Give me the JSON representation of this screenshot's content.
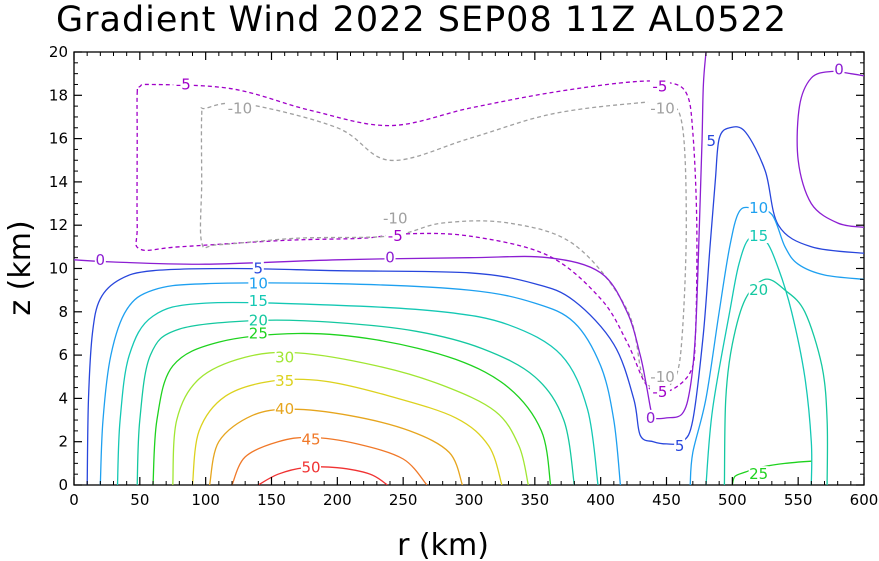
{
  "chart_data": {
    "type": "contour",
    "title": "Gradient Wind 2022 SEP08 11Z  AL0522",
    "xlabel": "r (km)",
    "ylabel": "z (km)",
    "xlim": [
      0,
      600
    ],
    "ylim": [
      0,
      20
    ],
    "xticks": [
      "0",
      "50",
      "100",
      "150",
      "200",
      "250",
      "300",
      "350",
      "400",
      "450",
      "500",
      "550",
      "600"
    ],
    "yticks": [
      "0",
      "2",
      "4",
      "6",
      "8",
      "10",
      "12",
      "14",
      "16",
      "18",
      "20"
    ],
    "grid": false,
    "legend": "none",
    "contour_levels": [
      -10,
      -5,
      0,
      5,
      10,
      15,
      20,
      25,
      30,
      35,
      40,
      45,
      50
    ],
    "negative_contours": "dashed",
    "colors": {
      "-10": "#a0a0a0",
      "-5": "#a000c8",
      "0": "#8c1ed2",
      "5": "#2846dc",
      "10": "#1ea0f0",
      "15": "#14c8b4",
      "20": "#14c8a0",
      "25": "#1ed21e",
      "30": "#a0e632",
      "35": "#dcd21e",
      "40": "#e6a51e",
      "45": "#f07828",
      "50": "#f03232"
    },
    "contours": [
      {
        "level": -5,
        "label": "-5",
        "closed": true,
        "points": [
          [
            48,
            18.1
          ],
          [
            50,
            18.4
          ],
          [
            60,
            18.5
          ],
          [
            120,
            18.3
          ],
          [
            180,
            17.3
          ],
          [
            240,
            16.6
          ],
          [
            300,
            17.4
          ],
          [
            360,
            18.1
          ],
          [
            420,
            18.6
          ],
          [
            450,
            18.6
          ],
          [
            465,
            18.1
          ],
          [
            470,
            16.3
          ],
          [
            473,
            12
          ],
          [
            472,
            7
          ],
          [
            468,
            5.2
          ],
          [
            450,
            4.3
          ],
          [
            435,
            4.6
          ],
          [
            420,
            6.6
          ],
          [
            400,
            8.6
          ],
          [
            360,
            10.6
          ],
          [
            300,
            11.5
          ],
          [
            250,
            11.6
          ],
          [
            220,
            11.4
          ],
          [
            160,
            11.3
          ],
          [
            80,
            11.0
          ],
          [
            50,
            10.9
          ],
          [
            48,
            12
          ],
          [
            48,
            16
          ]
        ]
      },
      {
        "level": -10,
        "label": "-10",
        "closed": true,
        "points": [
          [
            97,
            17.1
          ],
          [
            100,
            17.4
          ],
          [
            130,
            17.6
          ],
          [
            200,
            16.5
          ],
          [
            240,
            15.0
          ],
          [
            300,
            16.0
          ],
          [
            360,
            17.1
          ],
          [
            420,
            17.6
          ],
          [
            450,
            17.6
          ],
          [
            462,
            16.6
          ],
          [
            465,
            12
          ],
          [
            462,
            7
          ],
          [
            457,
            5.0
          ],
          [
            445,
            4.5
          ],
          [
            432,
            5.0
          ],
          [
            420,
            8.1
          ],
          [
            380,
            11.1
          ],
          [
            330,
            12.1
          ],
          [
            280,
            12.1
          ],
          [
            240,
            11.5
          ],
          [
            170,
            11.4
          ],
          [
            110,
            11.1
          ],
          [
            97,
            11.2
          ],
          [
            97,
            14
          ]
        ]
      },
      {
        "level": 0,
        "label": "0",
        "closed": false,
        "points": [
          [
            0,
            10.4
          ],
          [
            30,
            10.3
          ],
          [
            100,
            10.2
          ],
          [
            200,
            10.4
          ],
          [
            300,
            10.5
          ],
          [
            360,
            10.5
          ],
          [
            400,
            9.8
          ],
          [
            420,
            8.0
          ],
          [
            430,
            6.0
          ],
          [
            435,
            4.5
          ],
          [
            438,
            3.5
          ],
          [
            440,
            3.1
          ],
          [
            450,
            3.1
          ],
          [
            462,
            3.3
          ],
          [
            468,
            4.5
          ],
          [
            472,
            7
          ],
          [
            475,
            12
          ],
          [
            477,
            16
          ],
          [
            478,
            18.5
          ],
          [
            480,
            20
          ]
        ]
      },
      {
        "level": 0,
        "label": "0",
        "closed": false,
        "points": [
          [
            600,
            11.9
          ],
          [
            580,
            12.1
          ],
          [
            560,
            13.0
          ],
          [
            550,
            15
          ],
          [
            551,
            17.5
          ],
          [
            560,
            18.8
          ],
          [
            575,
            19.1
          ],
          [
            590,
            19.0
          ],
          [
            600,
            18.9
          ]
        ]
      },
      {
        "level": 5,
        "label": "5",
        "closed": false,
        "points": [
          [
            10,
            0
          ],
          [
            11,
            4
          ],
          [
            14,
            7
          ],
          [
            20,
            8.6
          ],
          [
            35,
            9.5
          ],
          [
            60,
            9.9
          ],
          [
            120,
            10.0
          ],
          [
            200,
            9.9
          ],
          [
            300,
            9.8
          ],
          [
            350,
            9.3
          ],
          [
            380,
            8.5
          ],
          [
            410,
            6.5
          ],
          [
            425,
            4.0
          ],
          [
            430,
            2.3
          ],
          [
            440,
            2.0
          ],
          [
            450,
            1.9
          ],
          [
            462,
            2.0
          ],
          [
            470,
            3.0
          ],
          [
            478,
            7
          ],
          [
            483,
            11
          ],
          [
            487,
            14
          ],
          [
            490,
            16
          ],
          [
            498,
            16.5
          ],
          [
            510,
            16.3
          ],
          [
            525,
            14.5
          ],
          [
            535,
            12.0
          ],
          [
            560,
            11.0
          ],
          [
            600,
            10.7
          ]
        ]
      },
      {
        "level": 10,
        "label": "10",
        "closed": false,
        "points": [
          [
            20,
            0
          ],
          [
            22,
            3
          ],
          [
            28,
            6
          ],
          [
            40,
            8.1
          ],
          [
            60,
            9.0
          ],
          [
            100,
            9.3
          ],
          [
            200,
            9.3
          ],
          [
            300,
            9.0
          ],
          [
            350,
            8.4
          ],
          [
            380,
            7.5
          ],
          [
            400,
            5.5
          ],
          [
            410,
            3.0
          ],
          [
            415,
            0
          ]
        ]
      },
      {
        "level": 10,
        "label": "10",
        "closed": false,
        "points": [
          [
            600,
            9.5
          ],
          [
            570,
            9.7
          ],
          [
            550,
            10.2
          ],
          [
            540,
            11
          ],
          [
            530,
            12.5
          ],
          [
            515,
            12.8
          ],
          [
            505,
            12.6
          ],
          [
            498,
            11
          ],
          [
            490,
            8
          ],
          [
            480,
            4
          ],
          [
            470,
            1.5
          ],
          [
            468,
            0
          ]
        ]
      },
      {
        "level": 15,
        "label": "15",
        "closed": false,
        "points": [
          [
            33,
            0
          ],
          [
            35,
            3
          ],
          [
            42,
            6
          ],
          [
            60,
            7.8
          ],
          [
            100,
            8.4
          ],
          [
            200,
            8.3
          ],
          [
            280,
            8.0
          ],
          [
            330,
            7.4
          ],
          [
            370,
            6.0
          ],
          [
            390,
            3.5
          ],
          [
            398,
            0
          ]
        ]
      },
      {
        "level": 15,
        "label": "15",
        "closed": false,
        "points": [
          [
            560,
            0
          ],
          [
            560,
            2
          ],
          [
            555,
            5
          ],
          [
            545,
            8
          ],
          [
            535,
            10
          ],
          [
            525,
            11.3
          ],
          [
            513,
            11.4
          ],
          [
            505,
            10.2
          ],
          [
            498,
            8
          ],
          [
            485,
            3.5
          ],
          [
            480,
            0
          ]
        ]
      },
      {
        "level": 20,
        "label": "20",
        "closed": false,
        "points": [
          [
            48,
            0
          ],
          [
            50,
            3
          ],
          [
            58,
            6
          ],
          [
            80,
            7.2
          ],
          [
            140,
            7.6
          ],
          [
            200,
            7.5
          ],
          [
            260,
            7.1
          ],
          [
            310,
            6.3
          ],
          [
            350,
            5.0
          ],
          [
            372,
            3.0
          ],
          [
            380,
            0
          ]
        ]
      },
      {
        "level": 20,
        "label": "20",
        "closed": false,
        "points": [
          [
            572,
            0
          ],
          [
            572,
            3
          ],
          [
            568,
            5.5
          ],
          [
            555,
            8
          ],
          [
            540,
            9
          ],
          [
            525,
            9.5
          ],
          [
            510,
            8.6
          ],
          [
            500,
            6.5
          ],
          [
            495,
            4
          ],
          [
            494,
            0
          ]
        ]
      },
      {
        "level": 25,
        "label": "25",
        "closed": false,
        "points": [
          [
            60,
            0
          ],
          [
            63,
            3
          ],
          [
            75,
            5.5
          ],
          [
            110,
            6.6
          ],
          [
            170,
            7.0
          ],
          [
            230,
            6.7
          ],
          [
            290,
            5.8
          ],
          [
            330,
            4.5
          ],
          [
            355,
            2.5
          ],
          [
            362,
            0
          ]
        ]
      },
      {
        "level": 25,
        "label": "25",
        "closed": false,
        "points": [
          [
            500,
            0
          ],
          [
            502,
            0.4
          ],
          [
            510,
            0.6
          ],
          [
            520,
            0.8
          ],
          [
            540,
            1.0
          ],
          [
            560,
            1.1
          ]
        ]
      },
      {
        "level": 30,
        "label": "30",
        "closed": false,
        "points": [
          [
            75,
            0
          ],
          [
            78,
            3
          ],
          [
            95,
            4.9
          ],
          [
            130,
            5.9
          ],
          [
            170,
            6.1
          ],
          [
            230,
            5.5
          ],
          [
            280,
            4.6
          ],
          [
            320,
            3.4
          ],
          [
            338,
            1.8
          ],
          [
            345,
            0
          ]
        ]
      },
      {
        "level": 35,
        "label": "35",
        "closed": false,
        "points": [
          [
            90,
            0
          ],
          [
            95,
            2.5
          ],
          [
            115,
            4.1
          ],
          [
            150,
            4.8
          ],
          [
            190,
            4.8
          ],
          [
            240,
            4.1
          ],
          [
            290,
            3.1
          ],
          [
            315,
            1.8
          ],
          [
            325,
            0
          ]
        ]
      },
      {
        "level": 40,
        "label": "40",
        "closed": false,
        "points": [
          [
            103,
            0
          ],
          [
            110,
            2.0
          ],
          [
            135,
            3.2
          ],
          [
            165,
            3.5
          ],
          [
            210,
            3.2
          ],
          [
            255,
            2.5
          ],
          [
            285,
            1.5
          ],
          [
            295,
            0
          ]
        ]
      },
      {
        "level": 45,
        "label": "45",
        "closed": false,
        "points": [
          [
            120,
            0
          ],
          [
            130,
            1.3
          ],
          [
            155,
            2.0
          ],
          [
            180,
            2.2
          ],
          [
            215,
            1.9
          ],
          [
            250,
            1.2
          ],
          [
            268,
            0
          ]
        ]
      },
      {
        "level": 50,
        "label": "50",
        "closed": false,
        "points": [
          [
            140,
            0
          ],
          [
            155,
            0.5
          ],
          [
            175,
            0.8
          ],
          [
            200,
            0.8
          ],
          [
            225,
            0.5
          ],
          [
            238,
            0
          ]
        ]
      }
    ],
    "labels": [
      {
        "level": -5,
        "text": "-5",
        "x": 83,
        "y": 18.5
      },
      {
        "level": -5,
        "text": "-5",
        "x": 445,
        "y": 18.4
      },
      {
        "level": -5,
        "text": "-5",
        "x": 244,
        "y": 11.5
      },
      {
        "level": -5,
        "text": "-5",
        "x": 445,
        "y": 4.3
      },
      {
        "level": -10,
        "text": "-10",
        "x": 126,
        "y": 17.4
      },
      {
        "level": -10,
        "text": "-10",
        "x": 447,
        "y": 17.4
      },
      {
        "level": -10,
        "text": "-10",
        "x": 244,
        "y": 12.3
      },
      {
        "level": -10,
        "text": "-10",
        "x": 447,
        "y": 5.0
      },
      {
        "level": 0,
        "text": "0",
        "x": 20,
        "y": 10.4
      },
      {
        "level": 0,
        "text": "0",
        "x": 240,
        "y": 10.5
      },
      {
        "level": 0,
        "text": "0",
        "x": 438,
        "y": 3.1
      },
      {
        "level": 0,
        "text": "0",
        "x": 581,
        "y": 19.2
      },
      {
        "level": 5,
        "text": "5",
        "x": 140,
        "y": 10.0
      },
      {
        "level": 5,
        "text": "5",
        "x": 484,
        "y": 15.9
      },
      {
        "level": 5,
        "text": "5",
        "x": 460,
        "y": 1.8
      },
      {
        "level": 10,
        "text": "10",
        "x": 140,
        "y": 9.3
      },
      {
        "level": 10,
        "text": "10",
        "x": 520,
        "y": 12.8
      },
      {
        "level": 15,
        "text": "15",
        "x": 140,
        "y": 8.5
      },
      {
        "level": 15,
        "text": "15",
        "x": 520,
        "y": 11.5
      },
      {
        "level": 20,
        "text": "20",
        "x": 140,
        "y": 7.6
      },
      {
        "level": 20,
        "text": "20",
        "x": 520,
        "y": 9.0
      },
      {
        "level": 25,
        "text": "25",
        "x": 140,
        "y": 7.0
      },
      {
        "level": 25,
        "text": "25",
        "x": 520,
        "y": 0.5
      },
      {
        "level": 30,
        "text": "30",
        "x": 160,
        "y": 5.9
      },
      {
        "level": 35,
        "text": "35",
        "x": 160,
        "y": 4.8
      },
      {
        "level": 40,
        "text": "40",
        "x": 160,
        "y": 3.5
      },
      {
        "level": 45,
        "text": "45",
        "x": 180,
        "y": 2.1
      },
      {
        "level": 50,
        "text": "50",
        "x": 180,
        "y": 0.8
      }
    ]
  }
}
